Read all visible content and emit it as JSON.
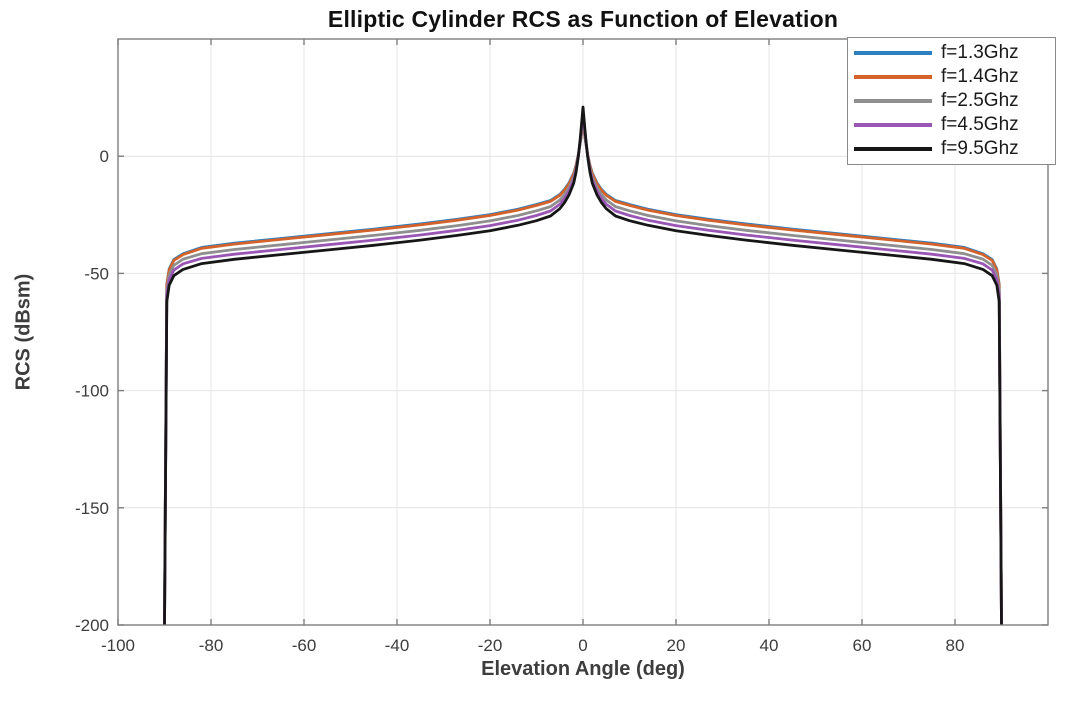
{
  "chart_data": {
    "type": "line",
    "title": "Elliptic Cylinder RCS as Function of Elevation",
    "xlabel": "Elevation Angle (deg)",
    "ylabel": "RCS (dBsm)",
    "xlim": [
      -100,
      100
    ],
    "ylim": [
      -200,
      50
    ],
    "xticks": [
      -100,
      -80,
      -60,
      -40,
      -20,
      0,
      20,
      40,
      60,
      80
    ],
    "yticks": [
      0,
      -50,
      -100,
      -150,
      -200
    ],
    "grid": true,
    "grid_color": "#e4e4e4",
    "frame_color": "#7d7d7d",
    "legend_position": "top-right",
    "symmetric_about_zero_deg": true,
    "angles_deg": [
      0,
      0.3,
      0.6,
      1,
      1.5,
      2,
      3,
      4,
      5,
      7,
      10,
      14,
      20,
      27,
      35,
      45,
      55,
      65,
      75,
      82,
      86,
      88,
      89,
      89.5,
      90
    ],
    "series": [
      {
        "name": "f=1.3Ghz",
        "color": "#2e7fbf",
        "rcs_dbsm": [
          12.7,
          9.8,
          5.6,
          0.8,
          -3.9,
          -7.2,
          -11.4,
          -14.2,
          -16.3,
          -18.9,
          -20.6,
          -22.6,
          -24.9,
          -26.9,
          -28.9,
          -31.1,
          -33.1,
          -35.1,
          -37.1,
          -38.9,
          -41.6,
          -44.1,
          -48.1,
          -54.6,
          -200
        ]
      },
      {
        "name": "f=1.4Ghz",
        "color": "#d4622b",
        "rcs_dbsm": [
          13.0,
          10.0,
          5.8,
          0.9,
          -4.2,
          -7.6,
          -11.8,
          -14.6,
          -16.7,
          -19.3,
          -21.0,
          -23.0,
          -25.3,
          -27.3,
          -29.3,
          -31.5,
          -33.5,
          -35.5,
          -37.5,
          -39.3,
          -42.0,
          -44.5,
          -48.5,
          -55.0,
          -200
        ]
      },
      {
        "name": "f=2.5Ghz",
        "color": "#8f8f8f",
        "rcs_dbsm": [
          15.0,
          11.0,
          6.2,
          0.6,
          -5.2,
          -9.0,
          -13.4,
          -16.4,
          -18.7,
          -21.5,
          -23.3,
          -25.3,
          -27.6,
          -29.6,
          -31.6,
          -33.8,
          -35.8,
          -37.8,
          -39.8,
          -41.6,
          -43.9,
          -46.6,
          -50.6,
          -57.3,
          -200
        ]
      },
      {
        "name": "f=4.5Ghz",
        "color": "#9a56b4",
        "rcs_dbsm": [
          18.0,
          12.6,
          6.8,
          0.3,
          -6.0,
          -10.2,
          -14.9,
          -18.1,
          -20.5,
          -23.4,
          -25.3,
          -27.3,
          -29.6,
          -31.6,
          -33.6,
          -35.8,
          -37.8,
          -39.8,
          -41.8,
          -43.6,
          -45.9,
          -48.6,
          -52.6,
          -59.3,
          -200
        ]
      },
      {
        "name": "f=9.5Ghz",
        "color": "#161616",
        "rcs_dbsm": [
          21.0,
          14.0,
          7.3,
          0.0,
          -6.9,
          -11.5,
          -16.5,
          -19.9,
          -22.4,
          -25.5,
          -27.5,
          -29.5,
          -31.8,
          -33.8,
          -35.8,
          -38.0,
          -40.0,
          -42.0,
          -44.0,
          -45.8,
          -48.3,
          -51.0,
          -55.0,
          -62.0,
          -200
        ]
      }
    ]
  }
}
